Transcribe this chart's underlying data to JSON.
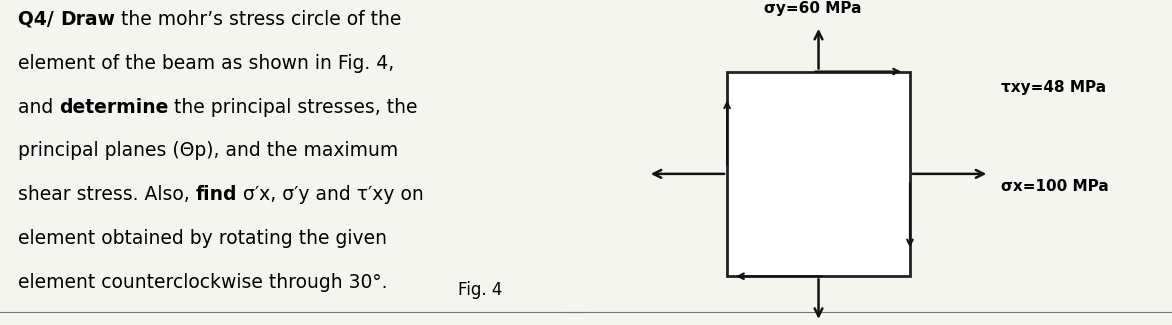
{
  "bg_color": "#f5f5f0",
  "text_lines": [
    [
      [
        "Q4/ ",
        true
      ],
      [
        "Draw",
        true
      ],
      [
        " the mohr’s stress circle of the",
        false
      ]
    ],
    [
      [
        "element of the beam as shown in Fig. 4,",
        false
      ]
    ],
    [
      [
        "and ",
        false
      ],
      [
        "determine",
        true
      ],
      [
        " the principal stresses, the",
        false
      ]
    ],
    [
      [
        "principal planes (Θp), and the maximum",
        false
      ]
    ],
    [
      [
        "shear stress. Also, ",
        false
      ],
      [
        "find",
        true
      ],
      [
        " σ′x, σ′y and τ′xy on",
        false
      ]
    ],
    [
      [
        "element obtained by rotating the given",
        false
      ]
    ],
    [
      [
        "element counterclockwise through 30°.",
        false
      ]
    ]
  ],
  "fig4_label": "Fig. 4",
  "sigma_y_label": "σy=60 MPa",
  "tau_xy_label": "τxy=48 MPa",
  "sigma_x_label": "σx=100 MPa",
  "fontsize_text": 13.5,
  "fontsize_labels": 11,
  "box_color": "#222222",
  "arrow_color": "#111111",
  "line_color": "#777777"
}
